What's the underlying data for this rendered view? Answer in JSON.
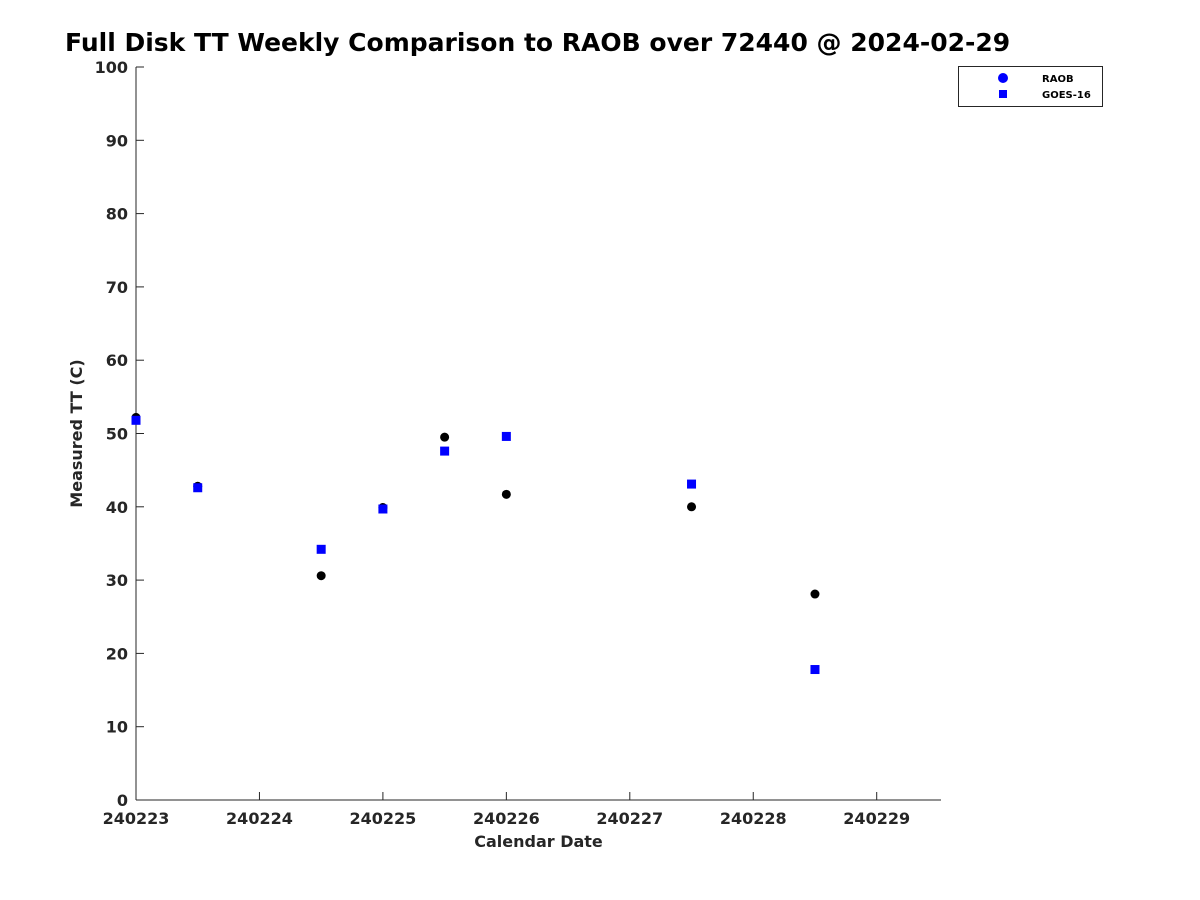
{
  "chart_data": {
    "type": "scatter",
    "title": "Full Disk TT Weekly Comparison to RAOB over 72440 @ 2024-02-29",
    "xlabel": "Calendar Date",
    "ylabel": "Measured TT (C)",
    "xticks": [
      "240223",
      "240224",
      "240225",
      "240226",
      "240227",
      "240228",
      "240229"
    ],
    "yticks": [
      "0",
      "10",
      "20",
      "30",
      "40",
      "50",
      "60",
      "70",
      "80",
      "90",
      "100"
    ],
    "xlim": [
      "2024-02-23 00:00",
      "2024-02-29 12:30"
    ],
    "ylim": [
      0,
      100
    ],
    "grid": false,
    "legend_position": "top-right outside",
    "legend": [
      {
        "label": "RAOB",
        "marker": "circle",
        "color": "#0000ff"
      },
      {
        "label": "GOES-16",
        "marker": "square",
        "color": "#0000ff"
      }
    ],
    "series": [
      {
        "name": "RAOB",
        "marker": "circle",
        "color": "#000000",
        "points": [
          {
            "x": "2024-02-23 00:00",
            "y": 52.2
          },
          {
            "x": "2024-02-23 12:00",
            "y": 42.8
          },
          {
            "x": "2024-02-24 12:00",
            "y": 30.6
          },
          {
            "x": "2024-02-25 00:00",
            "y": 39.9
          },
          {
            "x": "2024-02-25 12:00",
            "y": 49.5
          },
          {
            "x": "2024-02-26 00:00",
            "y": 41.7
          },
          {
            "x": "2024-02-27 12:00",
            "y": 40.0
          },
          {
            "x": "2024-02-28 12:00",
            "y": 28.1
          }
        ]
      },
      {
        "name": "GOES-16",
        "marker": "square",
        "color": "#0000ff",
        "points": [
          {
            "x": "2024-02-23 00:00",
            "y": 51.8
          },
          {
            "x": "2024-02-23 12:00",
            "y": 42.6
          },
          {
            "x": "2024-02-24 12:00",
            "y": 34.2
          },
          {
            "x": "2024-02-25 00:00",
            "y": 39.7
          },
          {
            "x": "2024-02-25 12:00",
            "y": 47.6
          },
          {
            "x": "2024-02-26 00:00",
            "y": 49.6
          },
          {
            "x": "2024-02-27 12:00",
            "y": 43.1
          },
          {
            "x": "2024-02-28 12:00",
            "y": 17.8
          }
        ]
      }
    ]
  }
}
